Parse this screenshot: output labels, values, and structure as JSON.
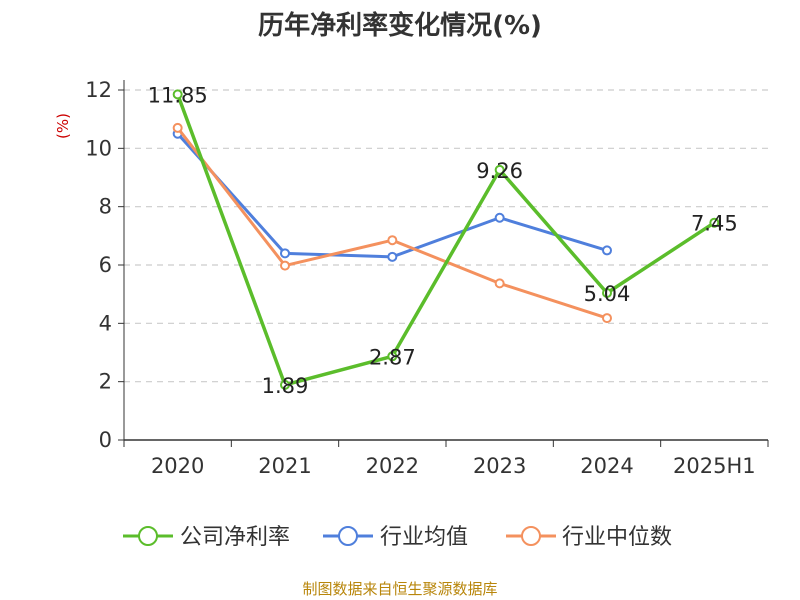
{
  "chart_data": {
    "type": "line",
    "title": "历年净利率变化情况(%)",
    "xlabel": "",
    "ylabel": "(%)",
    "categories": [
      "2020",
      "2021",
      "2022",
      "2023",
      "2024",
      "2025H1"
    ],
    "ylim": [
      0,
      12
    ],
    "yticks": [
      0,
      2,
      4,
      6,
      8,
      10,
      12
    ],
    "grid": true,
    "legend_position": "bottom",
    "series": [
      {
        "name": "公司净利率",
        "color": "#5bbd2b",
        "values": [
          11.85,
          1.89,
          2.87,
          9.26,
          5.04,
          7.45
        ],
        "labels": [
          "11.85",
          "1.89",
          "2.87",
          "9.26",
          "5.04",
          "7.45"
        ]
      },
      {
        "name": "行业均值",
        "color": "#4f7fdc",
        "values": [
          10.5,
          6.4,
          6.28,
          7.62,
          6.5,
          null
        ]
      },
      {
        "name": "行业中位数",
        "color": "#f4915e",
        "values": [
          10.7,
          5.98,
          6.85,
          5.37,
          4.18,
          null
        ]
      }
    ]
  },
  "source": "制图数据来自恒生聚源数据库"
}
